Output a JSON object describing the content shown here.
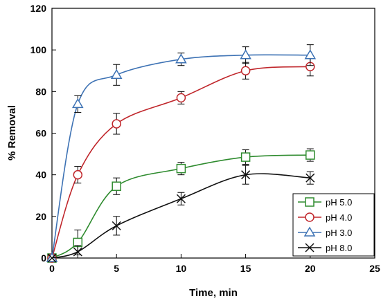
{
  "chart_data": {
    "type": "line",
    "xlabel": "Time, min",
    "ylabel": "% Removal",
    "xlim": [
      0,
      25
    ],
    "ylim": [
      0,
      120
    ],
    "x_ticks": [
      0,
      5,
      10,
      15,
      20,
      25
    ],
    "y_ticks": [
      0,
      20,
      40,
      60,
      80,
      100,
      120
    ],
    "grid": false,
    "legend_position": "bottom-right",
    "series": [
      {
        "name": "pH 5.0",
        "marker": "square",
        "color": "#2e8b2e",
        "x": [
          0,
          2,
          5,
          10,
          15,
          20
        ],
        "y": [
          0,
          7.5,
          34.5,
          43,
          48.5,
          49.5
        ],
        "err": [
          0,
          6,
          4,
          3,
          3.5,
          3
        ]
      },
      {
        "name": "pH 4.0",
        "marker": "circle",
        "color": "#c0262b",
        "x": [
          0,
          2,
          5,
          10,
          15,
          20
        ],
        "y": [
          0,
          40,
          64.5,
          77,
          90,
          92
        ],
        "err": [
          0,
          4,
          5,
          3,
          4,
          4.5
        ]
      },
      {
        "name": "pH 3.0",
        "marker": "triangle",
        "color": "#3d72b4",
        "x": [
          0,
          2,
          5,
          10,
          15,
          20
        ],
        "y": [
          0,
          74,
          88,
          95.5,
          97.5,
          97.5
        ],
        "err": [
          0,
          4,
          5,
          3,
          4,
          5
        ]
      },
      {
        "name": "pH 8.0",
        "marker": "x",
        "color": "#111111",
        "x": [
          0,
          2,
          5,
          10,
          15,
          20
        ],
        "y": [
          0,
          3,
          15.5,
          28.5,
          40,
          38.5
        ],
        "err": [
          0,
          3,
          4.5,
          3,
          4.5,
          3
        ]
      }
    ]
  }
}
